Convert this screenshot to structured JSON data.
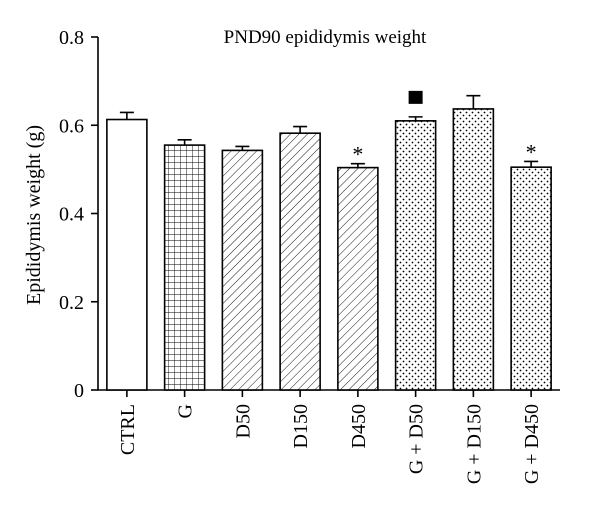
{
  "chart_data": {
    "type": "bar",
    "title": "PND90 epididymis weight",
    "ylabel": "Epididymis weight (g)",
    "xlabel": "",
    "ylim": [
      0,
      0.8
    ],
    "yticks": [
      0,
      0.2,
      0.4,
      0.6,
      0.8
    ],
    "ytick_labels": [
      "0",
      "0.2",
      "0.4",
      "0.6",
      "0.8"
    ],
    "grid": false,
    "categories": [
      "CTRL",
      "G",
      "D50",
      "D150",
      "D450",
      "G + D50",
      "G + D150",
      "G + D450"
    ],
    "values": [
      0.613,
      0.555,
      0.543,
      0.582,
      0.504,
      0.61,
      0.637,
      0.505
    ],
    "errors": [
      0.016,
      0.012,
      0.009,
      0.015,
      0.009,
      0.009,
      0.03,
      0.013
    ],
    "patterns": [
      "empty",
      "grid",
      "diagonal",
      "diagonal",
      "diagonal",
      "dots",
      "dots",
      "dots"
    ],
    "annotations": [
      {
        "category": "D450",
        "label": "*"
      },
      {
        "category": "G + D50",
        "label": "■"
      },
      {
        "category": "G + D450",
        "label": "*"
      }
    ]
  }
}
